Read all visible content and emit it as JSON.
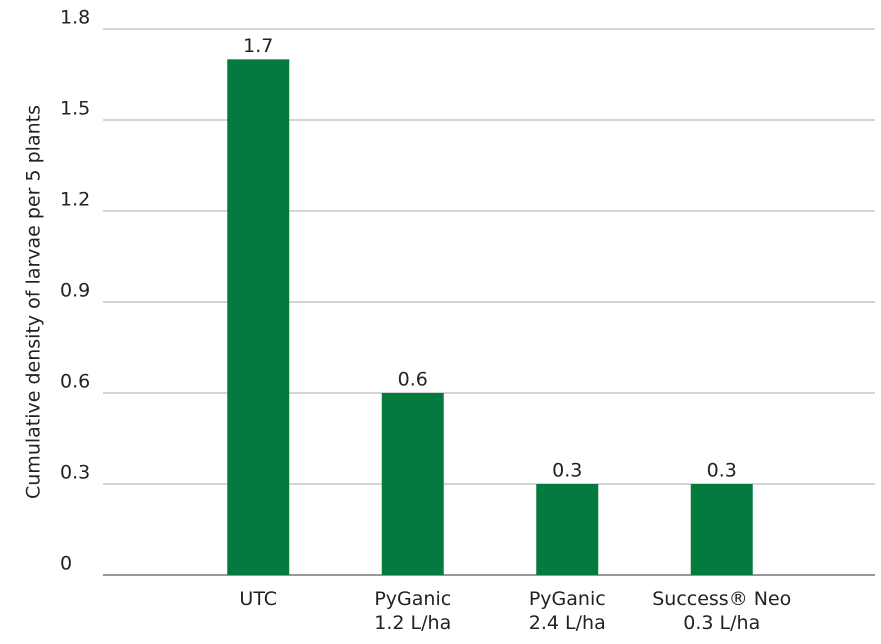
{
  "chart_data": {
    "type": "bar",
    "y_label": "Cumulative density of larvae per 5 plants",
    "categories": [
      "UTC",
      "PyGanic\n1.2 L/ha",
      "PyGanic\n2.4 L/ha",
      "Success® Neo\n0.3 L/ha"
    ],
    "values": [
      1.7,
      0.6,
      0.3,
      0.3
    ],
    "color": "#037a3e",
    "ylim": [
      0,
      1.8
    ],
    "yticks": [
      0,
      0.3,
      0.6,
      0.9,
      1.2,
      1.5,
      1.8
    ],
    "grid": true
  }
}
